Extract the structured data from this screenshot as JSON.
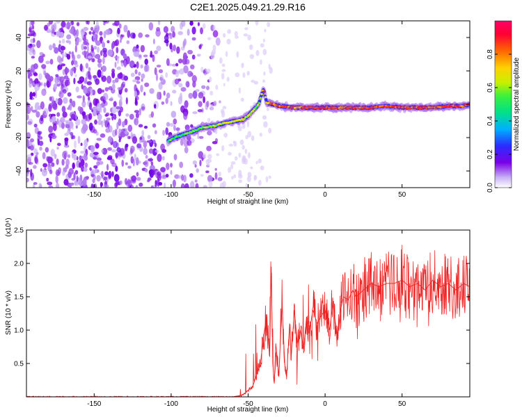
{
  "title": "C2E1.2025.049.21.29.R16",
  "chart_data": [
    {
      "type": "heatmap",
      "xlabel": "Height of straight line (km)",
      "ylabel": "Frequency (Hz)",
      "xlim": [
        -194,
        94
      ],
      "ylim": [
        -50,
        50
      ],
      "xticks": [
        -150,
        -100,
        -50,
        0,
        50
      ],
      "yticks": [
        -40,
        -20,
        0,
        20,
        40
      ],
      "colorbar": {
        "label": "Normalized spectral amplitude",
        "range": [
          0,
          1
        ],
        "ticks": [
          0.0,
          0.2,
          0.4,
          0.6,
          0.8
        ],
        "colors": [
          "#ffffff",
          "#c9b3f5",
          "#7a00e6",
          "#2b2bff",
          "#00b0ff",
          "#00e08a",
          "#3cf03c",
          "#c8f000",
          "#ffd000",
          "#ff6600",
          "#ff0033",
          "#ff0066"
        ]
      },
      "trace": {
        "x": [
          -102,
          -95,
          -88,
          -80,
          -72,
          -64,
          -58,
          -53,
          -49,
          -46,
          -43,
          -42,
          -40,
          -38,
          -30,
          -20,
          -10,
          0,
          10,
          20,
          30,
          40,
          50,
          60,
          70,
          80,
          90,
          94
        ],
        "y": [
          -22,
          -19,
          -17,
          -14,
          -13,
          -11,
          -10,
          -9,
          -6,
          -3,
          0,
          4,
          9,
          1,
          -1,
          -2,
          -2,
          -2,
          -2,
          -2,
          -2,
          -1,
          -2,
          -2,
          -2,
          -1,
          -1,
          0
        ],
        "amplitude": [
          0.25,
          0.3,
          0.3,
          0.35,
          0.4,
          0.45,
          0.5,
          0.55,
          0.45,
          0.4,
          0.45,
          0.55,
          0.6,
          0.7,
          0.8,
          0.75,
          0.8,
          0.85,
          0.8,
          0.85,
          0.9,
          0.8,
          0.85,
          0.9,
          0.8,
          0.85,
          0.8,
          0.7
        ]
      },
      "noise_region_x": [
        -194,
        -68
      ]
    },
    {
      "type": "line",
      "xlabel": "Height of straight line (km)",
      "ylabel": "SNR (10 * v/v)",
      "y_multiplier": "(x10⁴)",
      "xlim": [
        -194,
        94
      ],
      "ylim": [
        0,
        2.5
      ],
      "xticks": [
        -150,
        -100,
        -50,
        0,
        50
      ],
      "yticks": [
        0.5,
        1.0,
        1.5,
        2.0,
        2.5
      ],
      "color": "#ee2222",
      "series": [
        {
          "x": [
            -194,
            -60,
            -55,
            -52,
            -50,
            -47,
            -45,
            -42,
            -40,
            -38,
            -36,
            -35,
            -34,
            -33,
            -32,
            -30,
            -28,
            -26,
            -25,
            -23,
            -22,
            -20,
            -18,
            -16,
            -14,
            -12,
            -10,
            -8,
            -5,
            -3,
            0,
            3,
            5,
            8,
            10,
            12,
            15,
            18,
            20,
            25,
            30,
            35,
            40,
            45,
            50,
            55,
            60,
            65,
            70,
            75,
            80,
            85,
            90,
            94
          ],
          "y": [
            0.0,
            0.0,
            0.02,
            0.05,
            0.1,
            0.15,
            0.3,
            0.5,
            0.9,
            1.2,
            0.6,
            1.95,
            0.5,
            0.2,
            0.8,
            0.3,
            1.4,
            0.4,
            0.3,
            1.1,
            0.6,
            1.3,
            0.8,
            1.0,
            0.7,
            1.2,
            1.0,
            1.3,
            1.1,
            1.2,
            1.3,
            1.0,
            1.4,
            0.9,
            1.3,
            1.5,
            1.45,
            1.6,
            1.5,
            1.6,
            1.7,
            1.65,
            1.7,
            1.7,
            1.75,
            1.65,
            1.7,
            1.6,
            1.75,
            1.65,
            1.7,
            1.6,
            1.7,
            1.65
          ]
        }
      ]
    }
  ]
}
